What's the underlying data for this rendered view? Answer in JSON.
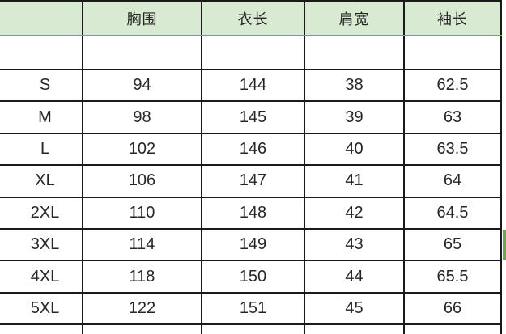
{
  "chart_data": {
    "type": "table",
    "title": "",
    "columns": [
      "",
      "胸围",
      "衣长",
      "肩宽",
      "袖长"
    ],
    "rows": [
      {
        "cells": [
          "",
          "",
          "",
          "",
          ""
        ]
      },
      {
        "cells": [
          "S",
          "94",
          "144",
          "38",
          "62.5"
        ]
      },
      {
        "cells": [
          "M",
          "98",
          "145",
          "39",
          "63"
        ]
      },
      {
        "cells": [
          "L",
          "102",
          "146",
          "40",
          "63.5"
        ]
      },
      {
        "cells": [
          "XL",
          "106",
          "147",
          "41",
          "64"
        ]
      },
      {
        "cells": [
          "2XL",
          "110",
          "148",
          "42",
          "64.5"
        ]
      },
      {
        "cells": [
          "3XL",
          "114",
          "149",
          "43",
          "65"
        ]
      },
      {
        "cells": [
          "4XL",
          "118",
          "150",
          "44",
          "65.5"
        ]
      },
      {
        "cells": [
          "5XL",
          "122",
          "151",
          "45",
          "66"
        ]
      },
      {
        "cells": [
          "",
          "",
          "",
          "",
          ""
        ]
      }
    ],
    "layout": {
      "grid": "on",
      "header_fill": "light-green",
      "cut_off": "table cropped at left, bottom and right edges"
    },
    "colors": {
      "header_bg": "#d9ead3",
      "header_underline": "#76a65a",
      "grid_line": "#1a1a1a",
      "selection_fragment": "#6aa84f",
      "text": "#262626",
      "background": "#ffffff"
    }
  }
}
